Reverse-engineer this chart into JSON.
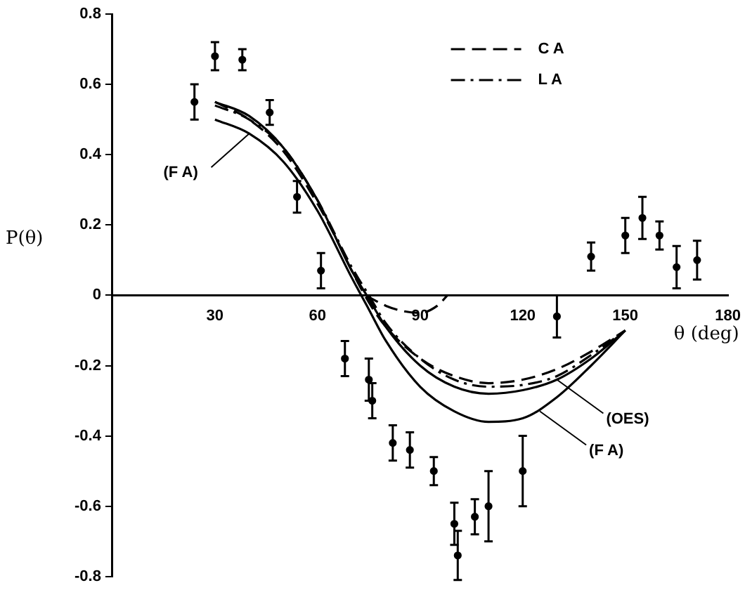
{
  "chart_data": {
    "type": "line",
    "xlabel": "θ (deg)",
    "ylabel": "P(θ)",
    "xlim": [
      0,
      180
    ],
    "xticks": [
      30,
      60,
      90,
      120,
      150,
      180
    ],
    "ylim": [
      -0.8,
      0.8
    ],
    "yticks": [
      -0.8,
      -0.6,
      -0.4,
      -0.2,
      0,
      0.2,
      0.4,
      0.6,
      0.8
    ],
    "grid": false,
    "legend": "top right",
    "marker": "none",
    "series": [
      {
        "name": "C A",
        "color": "#000000",
        "line_style": "dashed",
        "x": [
          30,
          40,
          50,
          60,
          65,
          70,
          75,
          80,
          90,
          100,
          110,
          120,
          130,
          140,
          150
        ],
        "values": [
          0.55,
          0.5,
          0.41,
          0.26,
          0.17,
          0.07,
          -0.02,
          -0.09,
          -0.18,
          -0.23,
          -0.25,
          -0.24,
          -0.21,
          -0.16,
          -0.1
        ]
      },
      {
        "name": "L A",
        "color": "#000000",
        "line_style": "dashdot",
        "x": [
          30,
          40,
          50,
          60,
          70,
          75,
          80,
          90,
          100,
          110,
          120,
          130,
          140,
          150
        ],
        "values": [
          0.54,
          0.5,
          0.42,
          0.27,
          0.08,
          0,
          -0.08,
          -0.18,
          -0.24,
          -0.26,
          -0.255,
          -0.23,
          -0.17,
          -0.1
        ]
      },
      {
        "color": "#000000",
        "line_style": "solid",
        "x": [
          30,
          40,
          50,
          60,
          70,
          75,
          80,
          90,
          100,
          110,
          120,
          130,
          140,
          150
        ],
        "values": [
          0.55,
          0.51,
          0.42,
          0.27,
          0.07,
          -0.01,
          -0.09,
          -0.2,
          -0.26,
          -0.28,
          -0.27,
          -0.24,
          -0.18,
          -0.1
        ]
      },
      {
        "color": "#000000",
        "line_style": "solid",
        "x": [
          30,
          40,
          50,
          60,
          70,
          75,
          80,
          90,
          100,
          110,
          120,
          130,
          140,
          150
        ],
        "values": [
          0.5,
          0.46,
          0.38,
          0.24,
          0.05,
          -0.04,
          -0.13,
          -0.26,
          -0.33,
          -0.36,
          -0.35,
          -0.29,
          -0.2,
          -0.1
        ]
      },
      {
        "color": "#000000",
        "line_style": "dashed",
        "x": [
          74,
          80,
          85,
          90,
          95,
          98
        ],
        "values": [
          0,
          -0.03,
          -0.045,
          -0.05,
          -0.03,
          0
        ]
      },
      {
        "type": "scatter",
        "color": "#000000",
        "marker": "circle",
        "x": [
          24,
          30,
          38,
          46,
          54,
          61,
          68,
          75,
          76,
          82,
          87,
          94,
          100,
          101,
          106,
          110,
          120,
          130,
          140,
          150,
          155,
          160,
          165,
          171
        ],
        "values": [
          0.55,
          0.68,
          0.67,
          0.52,
          0.28,
          0.07,
          -0.18,
          -0.24,
          -0.3,
          -0.42,
          -0.44,
          -0.5,
          -0.65,
          -0.74,
          -0.63,
          -0.6,
          -0.5,
          -0.06,
          0.11,
          0.17,
          0.22,
          0.17,
          0.08,
          0.1
        ],
        "errors": [
          0.05,
          0.04,
          0.03,
          0.035,
          0.045,
          0.05,
          0.05,
          0.06,
          0.05,
          0.05,
          0.05,
          0.04,
          0.06,
          0.07,
          0.05,
          0.1,
          0.1,
          0.06,
          0.04,
          0.05,
          0.06,
          0.04,
          0.06,
          0.055
        ]
      }
    ],
    "annotations": [
      {
        "text": "(F A)",
        "x": 40,
        "y": 0.46
      },
      {
        "text": "(OES)",
        "x": 130,
        "y": -0.24
      },
      {
        "text": "(F A)",
        "x": 125,
        "y": -0.33
      }
    ]
  }
}
